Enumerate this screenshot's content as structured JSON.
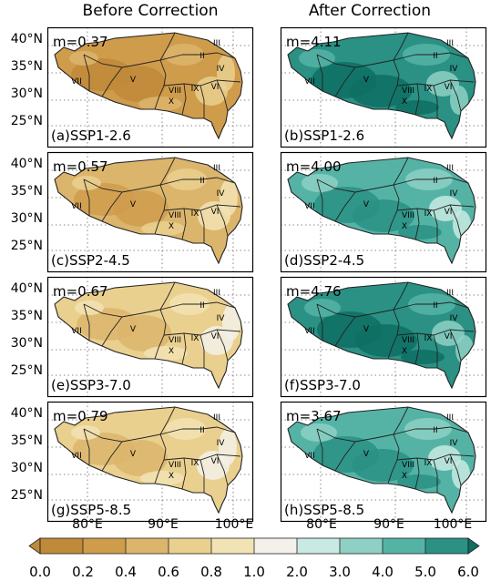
{
  "figure": {
    "column_titles": [
      "Before Correction",
      "After Correction"
    ],
    "y_ticks": [
      "40°N",
      "35°N",
      "30°N",
      "25°N"
    ],
    "x_ticks": [
      "80°E",
      "90°E",
      "100°E"
    ],
    "region_labels": [
      "II",
      "III",
      "IV",
      "V",
      "VI",
      "VII",
      "VIII",
      "IX",
      "X"
    ],
    "panels": [
      {
        "label": "(a)SSP1-2.6",
        "m": "m=0.37",
        "column": "before",
        "mean_value": 0.37
      },
      {
        "label": "(b)SSP1-2.6",
        "m": "m=4.11",
        "column": "after",
        "mean_value": 4.11
      },
      {
        "label": "(c)SSP2-4.5",
        "m": "m=0.57",
        "column": "before",
        "mean_value": 0.57
      },
      {
        "label": "(d)SSP2-4.5",
        "m": "m=4.00",
        "column": "after",
        "mean_value": 4.0
      },
      {
        "label": "(e)SSP3-7.0",
        "m": "m=0.67",
        "column": "before",
        "mean_value": 0.67
      },
      {
        "label": "(f)SSP3-7.0",
        "m": "m=4.76",
        "column": "after",
        "mean_value": 4.76
      },
      {
        "label": "(g)SSP5-8.5",
        "m": "m=0.79",
        "column": "before",
        "mean_value": 0.79
      },
      {
        "label": "(h)SSP5-8.5",
        "m": "m=3.67",
        "column": "after",
        "mean_value": 3.67
      }
    ],
    "colorbar": {
      "ticks": [
        "0.0",
        "0.2",
        "0.4",
        "0.6",
        "0.8",
        "1.0",
        "2.0",
        "3.0",
        "4.0",
        "5.0",
        "6.0"
      ],
      "colors": [
        "#bf8a3a",
        "#cf9c4c",
        "#dcb56c",
        "#ead08f",
        "#f2e3b4",
        "#f3f1e9",
        "#c8eae3",
        "#8ed0c4",
        "#55b3a6",
        "#2a9184",
        "#0e6f63"
      ]
    }
  }
}
